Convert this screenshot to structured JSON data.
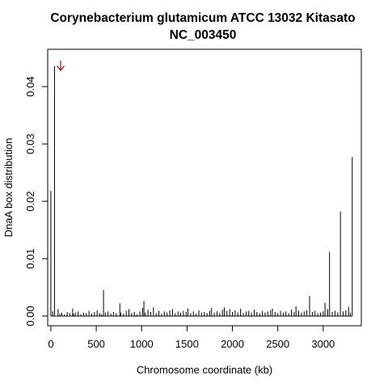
{
  "chart_data": {
    "type": "bar",
    "title": "Corynebacterium glutamicum ATCC 13032 Kitasato",
    "subtitle": "NC_003450",
    "xlabel": "Chromosome coordinate (kb)",
    "ylabel": "DnaA box distribution",
    "xlim": [
      -35,
      3420
    ],
    "ylim": [
      -0.0017,
      0.0465
    ],
    "x_ticks": [
      0,
      500,
      1000,
      1500,
      2000,
      2500,
      3000
    ],
    "x_tick_labels": [
      "0",
      "500",
      "1000",
      "1500",
      "2000",
      "2500",
      "3000"
    ],
    "y_ticks": [
      0.0,
      0.01,
      0.02,
      0.03,
      0.04
    ],
    "y_tick_labels": [
      "0.00",
      "0.01",
      "0.02",
      "0.03",
      "0.04"
    ],
    "grid": false,
    "legend": "none",
    "annotation": {
      "type": "arrow",
      "color": "#cc0000",
      "points_to_x": 0
    },
    "series": [
      {
        "x": [
          0,
          20,
          40,
          80,
          100,
          120,
          150,
          180,
          210,
          240,
          250,
          270,
          300,
          330,
          360,
          390,
          420,
          450,
          480,
          510,
          540,
          560,
          580,
          600,
          630,
          660,
          690,
          720,
          760,
          770,
          800,
          830,
          860,
          890,
          920,
          950,
          980,
          1010,
          1025,
          1040,
          1070,
          1100,
          1130,
          1160,
          1190,
          1220,
          1250,
          1280,
          1310,
          1340,
          1370,
          1400,
          1430,
          1460,
          1490,
          1510,
          1540,
          1570,
          1600,
          1630,
          1660,
          1690,
          1720,
          1750,
          1770,
          1800,
          1830,
          1860,
          1890,
          1910,
          1940,
          1970,
          2000,
          2030,
          2060,
          2090,
          2120,
          2150,
          2180,
          2210,
          2240,
          2270,
          2300,
          2330,
          2360,
          2390,
          2420,
          2440,
          2470,
          2500,
          2530,
          2560,
          2590,
          2620,
          2650,
          2680,
          2700,
          2730,
          2760,
          2790,
          2820,
          2850,
          2880,
          2910,
          2940,
          2970,
          3000,
          3020,
          3050,
          3070,
          3100,
          3130,
          3160,
          3190,
          3220,
          3250,
          3280,
          3300,
          3320
        ],
        "values": [
          0.0218,
          0.0008,
          0.0436,
          0.0012,
          0.0004,
          0.0006,
          0.0003,
          0.0007,
          0.0005,
          0.0013,
          0.0004,
          0.0006,
          0.0008,
          0.0003,
          0.0006,
          0.0005,
          0.0009,
          0.0004,
          0.0007,
          0.001,
          0.0005,
          0.0003,
          0.0045,
          0.0006,
          0.0008,
          0.0004,
          0.0007,
          0.0005,
          0.0022,
          0.0006,
          0.0004,
          0.0009,
          0.0012,
          0.0005,
          0.0007,
          0.0003,
          0.0008,
          0.0014,
          0.0026,
          0.0006,
          0.0011,
          0.0007,
          0.0015,
          0.0005,
          0.0009,
          0.0004,
          0.0008,
          0.0006,
          0.001,
          0.0012,
          0.0005,
          0.0008,
          0.0006,
          0.0009,
          0.0007,
          0.0013,
          0.0005,
          0.0008,
          0.0004,
          0.001,
          0.0006,
          0.0007,
          0.0005,
          0.0009,
          0.0014,
          0.0006,
          0.0008,
          0.0005,
          0.0011,
          0.0015,
          0.0009,
          0.0012,
          0.0007,
          0.001,
          0.0006,
          0.0013,
          0.0005,
          0.0008,
          0.0009,
          0.0006,
          0.0011,
          0.0007,
          0.0005,
          0.0009,
          0.0006,
          0.0008,
          0.001,
          0.0013,
          0.0007,
          0.0005,
          0.0009,
          0.0006,
          0.0008,
          0.0005,
          0.0011,
          0.0007,
          0.0017,
          0.0009,
          0.0006,
          0.0008,
          0.001,
          0.0035,
          0.0007,
          0.0009,
          0.0005,
          0.0006,
          0.0008,
          0.0023,
          0.0012,
          0.0112,
          0.0007,
          0.0009,
          0.0006,
          0.0182,
          0.0008,
          0.001,
          0.0016,
          0.0006,
          0.0277
        ]
      }
    ]
  }
}
